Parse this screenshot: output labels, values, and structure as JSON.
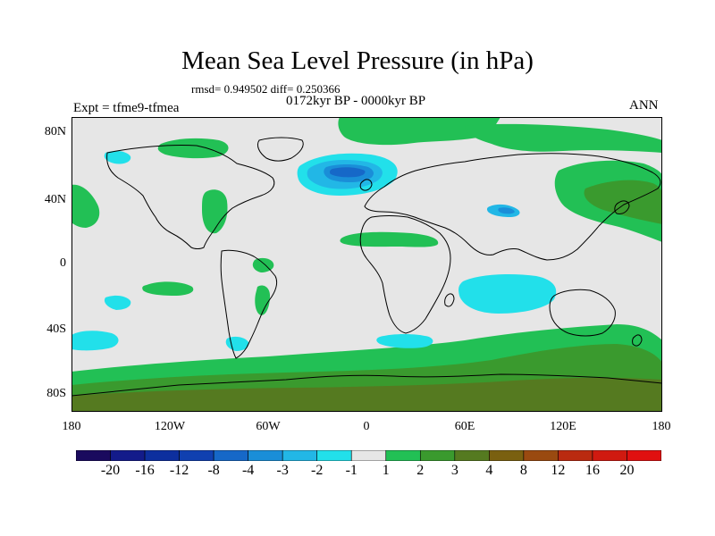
{
  "title": "Mean Sea Level Pressure (in hPa)",
  "stats": "rmsd= 0.949502  diff= 0.250366",
  "period": "0172kyr BP - 0000kyr BP",
  "experiment": "Expt = tfme9-tfmea",
  "season": "ANN",
  "lat_labels": [
    "80N",
    "40N",
    "0",
    "40S",
    "80S"
  ],
  "lon_labels": [
    "180",
    "120W",
    "60W",
    "0",
    "60E",
    "120E",
    "180"
  ],
  "colorbar": {
    "labels": [
      "-20",
      "-16",
      "-12",
      "-8",
      "-4",
      "-3",
      "-2",
      "-1",
      "1",
      "2",
      "3",
      "4",
      "8",
      "12",
      "16",
      "20"
    ],
    "colors": [
      "#1a0a5e",
      "#131b8a",
      "#0d2f9e",
      "#1040b0",
      "#1668c8",
      "#1a8ed8",
      "#22b7e6",
      "#22e0ea",
      "#e6e6e6",
      "#22c055",
      "#3a9a2e",
      "#557a20",
      "#7a6010",
      "#9a4a10",
      "#ba2a10",
      "#d01a10",
      "#e01010"
    ]
  },
  "palette": {
    "background": "#e6e6e6",
    "neg_light": "#22e0ea",
    "neg_mid": "#22b7e6",
    "neg_strong": "#1a8ed8",
    "neg_deep": "#1668c8",
    "pos_light": "#22c055",
    "pos_mid": "#3a9a2e",
    "pos_strong": "#557a20",
    "pos_deep": "#7a6010",
    "coast": "#000000"
  }
}
